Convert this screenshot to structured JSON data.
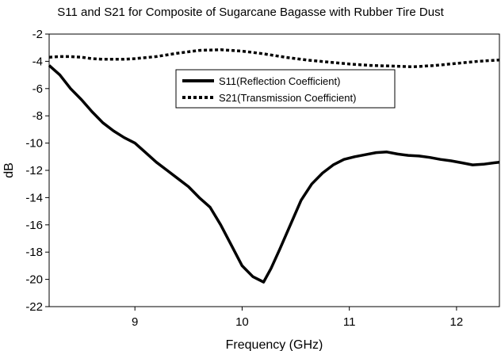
{
  "chart_data": {
    "type": "line",
    "title": "S11 and S21 for Composite of Sugarcane Bagasse with Rubber Tire Dust",
    "xlabel": "Frequency (GHz)",
    "ylabel": "dB",
    "xlim": [
      8.2,
      12.4
    ],
    "ylim": [
      -22,
      -2
    ],
    "xticks": [
      "9",
      "10",
      "11",
      "12"
    ],
    "yticks": [
      "-2",
      "-4",
      "-6",
      "-8",
      "-10",
      "-12",
      "-14",
      "-16",
      "-18",
      "-20",
      "-22"
    ],
    "grid": false,
    "legend_position": "top-center",
    "series": [
      {
        "name": "S11(Reflection Coefficient)",
        "style": "solid",
        "color": "#000000",
        "x": [
          8.2,
          8.3,
          8.4,
          8.5,
          8.6,
          8.7,
          8.8,
          8.9,
          9.0,
          9.1,
          9.2,
          9.3,
          9.4,
          9.5,
          9.6,
          9.7,
          9.8,
          9.9,
          10.0,
          10.1,
          10.2,
          10.27,
          10.35,
          10.45,
          10.55,
          10.65,
          10.75,
          10.85,
          10.95,
          11.05,
          11.15,
          11.25,
          11.35,
          11.45,
          11.55,
          11.65,
          11.75,
          11.85,
          11.95,
          12.05,
          12.15,
          12.25,
          12.35,
          12.4
        ],
        "y": [
          -4.3,
          -5.0,
          -6.0,
          -6.8,
          -7.7,
          -8.5,
          -9.1,
          -9.6,
          -10.0,
          -10.7,
          -11.4,
          -12.0,
          -12.6,
          -13.2,
          -14.0,
          -14.7,
          -16.0,
          -17.5,
          -19.0,
          -19.8,
          -20.2,
          -19.2,
          -17.8,
          -16.0,
          -14.2,
          -13.0,
          -12.2,
          -11.6,
          -11.2,
          -11.0,
          -10.85,
          -10.7,
          -10.65,
          -10.8,
          -10.9,
          -10.95,
          -11.05,
          -11.2,
          -11.3,
          -11.45,
          -11.6,
          -11.55,
          -11.45,
          -11.4
        ]
      },
      {
        "name": "S21(Transmission Coefficient)",
        "style": "dashed",
        "color": "#000000",
        "x": [
          8.2,
          8.3,
          8.4,
          8.5,
          8.6,
          8.7,
          8.8,
          8.9,
          9.0,
          9.2,
          9.4,
          9.6,
          9.8,
          10.0,
          10.2,
          10.4,
          10.6,
          10.8,
          11.0,
          11.2,
          11.4,
          11.6,
          11.8,
          12.0,
          12.2,
          12.4
        ],
        "y": [
          -3.7,
          -3.65,
          -3.65,
          -3.7,
          -3.8,
          -3.85,
          -3.85,
          -3.85,
          -3.8,
          -3.65,
          -3.4,
          -3.2,
          -3.15,
          -3.25,
          -3.45,
          -3.7,
          -3.9,
          -4.05,
          -4.2,
          -4.3,
          -4.35,
          -4.4,
          -4.3,
          -4.15,
          -4.0,
          -3.9
        ]
      }
    ]
  }
}
